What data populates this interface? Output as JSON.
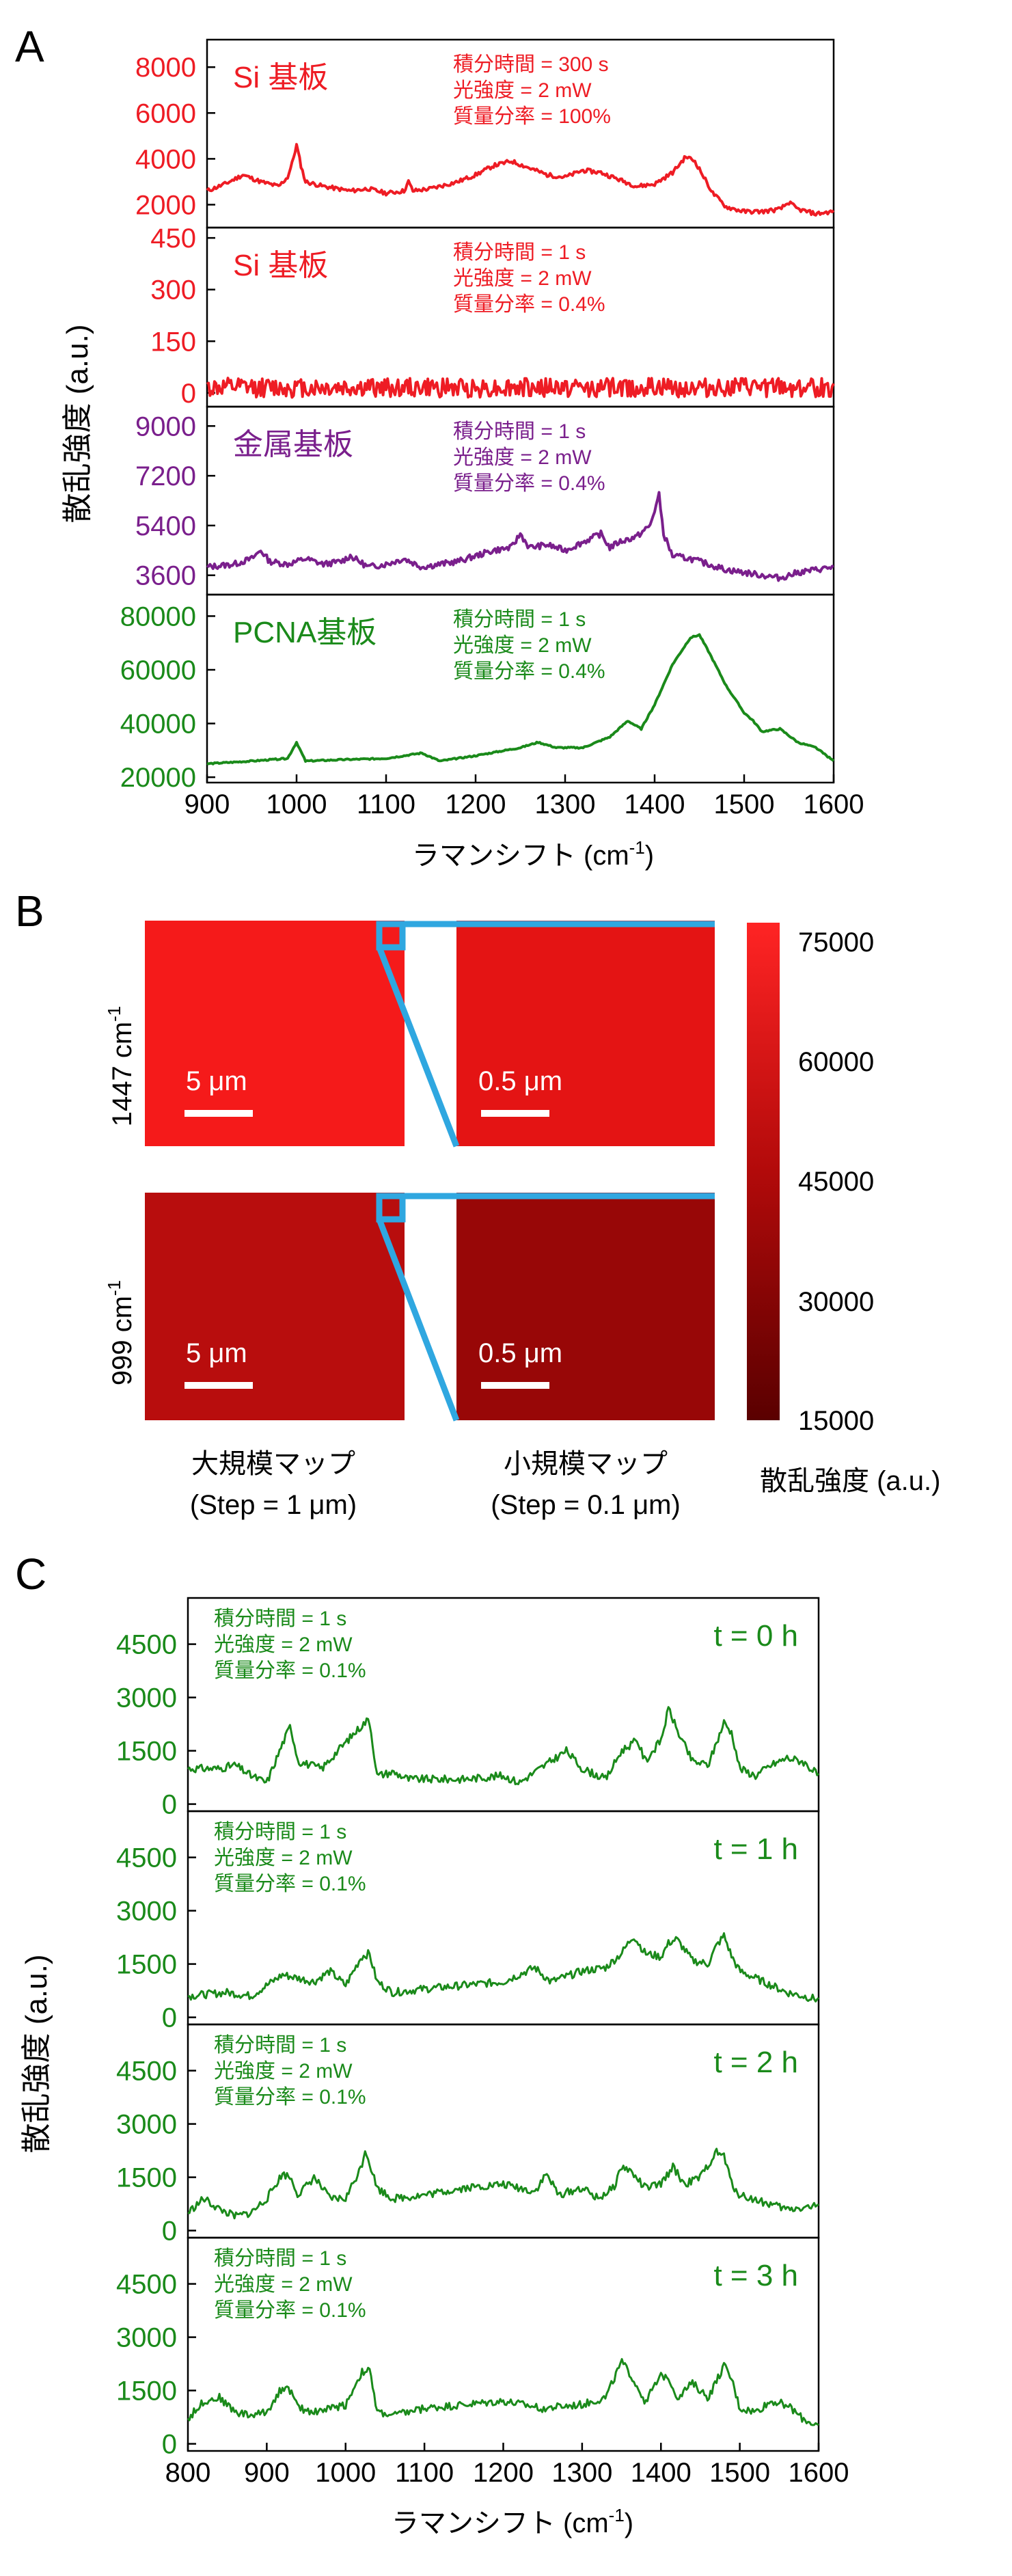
{
  "panel_labels": {
    "a": "A",
    "b": "B",
    "c": "C"
  },
  "colors": {
    "red": "#ee1c24",
    "purple": "#7a1f8c",
    "green": "#1a8a1a",
    "blue": "#2fa7e0"
  },
  "panelA": {
    "ylabel": "散乱強度 (a.u.)",
    "xlabel": "ラマンシフト (cm-1)",
    "xlabel_main": "ラマンシフト (cm",
    "xlabel_sup": "-1",
    "xlabel_end": ")",
    "xticks": [
      "900",
      "1000",
      "1100",
      "1200",
      "1300",
      "1400",
      "1500",
      "1600"
    ]
  },
  "panelB": {
    "row1_label": "1447 cm-1",
    "row1_main": "1447 cm",
    "row2_label": "999 cm-1",
    "row2_main": "999 cm",
    "sup": "-1",
    "scale_large": "5 μm",
    "scale_small": "0.5 μm",
    "cap_large_1": "大規模マップ",
    "cap_large_2": "(Step = 1 μm)",
    "cap_small_1": "小規模マップ",
    "cap_small_2": "(Step = 0.1 μm)",
    "colorbar_ticks": [
      "75000",
      "60000",
      "45000",
      "30000",
      "15000"
    ],
    "colorbar_label": "散乱強度 (a.u.)"
  },
  "panelC": {
    "ylabel": "散乱強度 (a.u.)",
    "xlabel": "ラマンシフト (cm-1)",
    "xlabel_main": "ラマンシフト (cm",
    "xlabel_sup": "-1",
    "xlabel_end": ")",
    "xticks": [
      "800",
      "900",
      "1000",
      "1100",
      "1200",
      "1300",
      "1400",
      "1500",
      "1600"
    ]
  },
  "chart_data": [
    {
      "id": "A1",
      "type": "line",
      "color": "#ee1c24",
      "label": "Si 基板",
      "params": [
        "積分時間 = 300 s",
        "光強度 = 2 mW",
        "質量分率 = 100%"
      ],
      "xlim": [
        900,
        1600
      ],
      "ylim": [
        1000,
        9200
      ],
      "yticks": [
        2000,
        4000,
        6000,
        8000
      ],
      "ytick_labels": [
        "2000",
        "4000",
        "6000",
        "8000"
      ],
      "x": [
        900,
        920,
        940,
        960,
        980,
        990,
        995,
        1000,
        1005,
        1010,
        1030,
        1060,
        1080,
        1100,
        1120,
        1125,
        1130,
        1150,
        1180,
        1200,
        1220,
        1240,
        1260,
        1280,
        1300,
        1320,
        1340,
        1360,
        1380,
        1400,
        1420,
        1435,
        1445,
        1455,
        1465,
        1480,
        1500,
        1520,
        1540,
        1550,
        1560,
        1580,
        1600
      ],
      "y": [
        2600,
        2900,
        3300,
        3000,
        2800,
        3200,
        3800,
        4600,
        3700,
        3000,
        2800,
        2600,
        2700,
        2500,
        2600,
        3000,
        2600,
        2700,
        3000,
        3300,
        3700,
        3900,
        3600,
        3300,
        3200,
        3500,
        3400,
        3100,
        2800,
        2900,
        3400,
        4100,
        3900,
        3200,
        2500,
        1900,
        1700,
        1700,
        1800,
        2100,
        1800,
        1600,
        1700
      ]
    },
    {
      "id": "A2",
      "type": "line",
      "color": "#ee1c24",
      "label": "Si 基板",
      "params": [
        "積分時間 = 1 s",
        "光強度 = 2 mW",
        "質量分率 = 0.4%"
      ],
      "xlim": [
        900,
        1600
      ],
      "ylim": [
        -40,
        480
      ],
      "yticks": [
        0,
        150,
        300,
        450
      ],
      "ytick_labels": [
        "0",
        "150",
        "300",
        "450"
      ],
      "x": [
        900,
        1600
      ],
      "y": [
        15,
        15
      ]
    },
    {
      "id": "A3",
      "type": "line",
      "color": "#7a1f8c",
      "label": "金属基板",
      "params": [
        "積分時間 = 1 s",
        "光強度 = 2 mW",
        "質量分率 = 0.4%"
      ],
      "xlim": [
        900,
        1600
      ],
      "ylim": [
        2900,
        9700
      ],
      "yticks": [
        3600,
        5400,
        7200,
        9000
      ],
      "ytick_labels": [
        "3600",
        "5400",
        "7200",
        "9000"
      ],
      "x": [
        900,
        930,
        950,
        960,
        970,
        990,
        1010,
        1030,
        1050,
        1060,
        1080,
        1100,
        1120,
        1140,
        1160,
        1180,
        1200,
        1220,
        1240,
        1250,
        1260,
        1280,
        1300,
        1320,
        1340,
        1350,
        1360,
        1380,
        1395,
        1405,
        1410,
        1420,
        1440,
        1460,
        1480,
        1500,
        1520,
        1540,
        1560,
        1580,
        1600
      ],
      "y": [
        3900,
        4000,
        4200,
        4500,
        4100,
        4000,
        4200,
        4000,
        4100,
        4300,
        3900,
        4000,
        4200,
        3900,
        4000,
        4100,
        4300,
        4500,
        4600,
        5100,
        4600,
        4700,
        4500,
        4800,
        5100,
        4600,
        4800,
        5000,
        5400,
        6500,
        5100,
        4300,
        4200,
        4000,
        3800,
        3700,
        3600,
        3500,
        3700,
        3800,
        3900
      ]
    },
    {
      "id": "A4",
      "type": "line",
      "color": "#1a8a1a",
      "label": "PCNA基板",
      "params": [
        "積分時間 = 1 s",
        "光強度 = 2 mW",
        "質量分率 = 0.4%"
      ],
      "xlim": [
        900,
        1600
      ],
      "ylim": [
        18000,
        88000
      ],
      "yticks": [
        20000,
        40000,
        60000,
        80000
      ],
      "ytick_labels": [
        "20000",
        "40000",
        "60000",
        "80000"
      ],
      "x": [
        900,
        950,
        990,
        1000,
        1010,
        1050,
        1100,
        1140,
        1160,
        1200,
        1250,
        1270,
        1290,
        1320,
        1350,
        1370,
        1385,
        1400,
        1420,
        1440,
        1450,
        1460,
        1480,
        1500,
        1510,
        1520,
        1540,
        1560,
        1580,
        1600
      ],
      "y": [
        25000,
        26000,
        27000,
        33000,
        26000,
        26500,
        27000,
        29000,
        26000,
        28000,
        31000,
        33000,
        31000,
        31000,
        35000,
        41000,
        38000,
        47000,
        62000,
        72000,
        73000,
        67000,
        54000,
        44000,
        41000,
        37000,
        38000,
        33000,
        31000,
        26000
      ]
    },
    {
      "id": "B",
      "type": "heatmap",
      "maps": [
        {
          "row": "1447 cm-1",
          "map": "大規模マップ",
          "value": 71000
        },
        {
          "row": "1447 cm-1",
          "map": "小規模マップ",
          "value": 64000
        },
        {
          "row": "999 cm-1",
          "map": "大規模マップ",
          "value": 44000
        },
        {
          "row": "999 cm-1",
          "map": "小規模マップ",
          "value": 36000
        }
      ],
      "colorbar_range": [
        15000,
        75000
      ]
    },
    {
      "id": "C1",
      "type": "line",
      "color": "#1a8a1a",
      "label": "t = 0 h",
      "params": [
        "積分時間 = 1 s",
        "光強度 = 2 mW",
        "質量分率 = 0.1%"
      ],
      "xlim": [
        800,
        1600
      ],
      "ylim": [
        -200,
        5800
      ],
      "yticks": [
        0,
        1500,
        3000,
        4500
      ],
      "ytick_labels": [
        "0",
        "1500",
        "3000",
        "4500"
      ],
      "x": [
        800,
        840,
        860,
        880,
        900,
        920,
        930,
        940,
        970,
        990,
        1020,
        1030,
        1040,
        1060,
        1080,
        1100,
        1150,
        1200,
        1220,
        1240,
        1260,
        1280,
        1300,
        1330,
        1350,
        1370,
        1380,
        1400,
        1410,
        1420,
        1440,
        1460,
        1480,
        1490,
        1500,
        1520,
        1540,
        1560,
        1580,
        1600
      ],
      "y": [
        1000,
        1000,
        1100,
        800,
        600,
        1700,
        2200,
        1200,
        1000,
        1500,
        2200,
        2400,
        800,
        900,
        700,
        700,
        700,
        800,
        600,
        900,
        1200,
        1500,
        1000,
        700,
        1500,
        1800,
        1200,
        1800,
        2700,
        2100,
        1200,
        1100,
        2300,
        2000,
        1000,
        800,
        1100,
        1300,
        1200,
        800
      ]
    },
    {
      "id": "C2",
      "type": "line",
      "color": "#1a8a1a",
      "label": "t = 1 h",
      "params": [
        "積分時間 = 1 s",
        "光強度 = 2 mW",
        "質量分率 = 0.1%"
      ],
      "xlim": [
        800,
        1600
      ],
      "ylim": [
        -200,
        5800
      ],
      "yticks": [
        0,
        1500,
        3000,
        4500
      ],
      "ytick_labels": [
        "0",
        "1500",
        "3000",
        "4500"
      ],
      "x": [
        800,
        850,
        880,
        900,
        920,
        940,
        960,
        980,
        1000,
        1020,
        1030,
        1040,
        1060,
        1100,
        1150,
        1200,
        1240,
        1260,
        1300,
        1330,
        1350,
        1365,
        1380,
        1400,
        1410,
        1420,
        1440,
        1460,
        1470,
        1480,
        1490,
        1500,
        1530,
        1560,
        1600
      ],
      "y": [
        600,
        700,
        600,
        900,
        1200,
        1100,
        1000,
        1300,
        900,
        1700,
        1800,
        1000,
        700,
        800,
        900,
        1000,
        1400,
        1000,
        1300,
        1400,
        1800,
        2300,
        1800,
        1700,
        2100,
        2200,
        1600,
        1500,
        2000,
        2300,
        1700,
        1300,
        1000,
        700,
        500
      ]
    },
    {
      "id": "C3",
      "type": "line",
      "color": "#1a8a1a",
      "label": "t = 2 h",
      "params": [
        "積分時間 = 1 s",
        "光強度 = 2 mW",
        "質量分率 = 0.1%"
      ],
      "xlim": [
        800,
        1600
      ],
      "ylim": [
        -200,
        5800
      ],
      "yticks": [
        0,
        1500,
        3000,
        4500
      ],
      "ytick_labels": [
        "0",
        "1500",
        "3000",
        "4500"
      ],
      "x": [
        800,
        820,
        840,
        860,
        880,
        900,
        920,
        930,
        940,
        960,
        980,
        1000,
        1020,
        1025,
        1040,
        1060,
        1100,
        1150,
        1200,
        1240,
        1255,
        1270,
        1300,
        1320,
        1340,
        1350,
        1360,
        1380,
        1400,
        1415,
        1430,
        1450,
        1470,
        1480,
        1490,
        1500,
        1530,
        1560,
        1600
      ],
      "y": [
        500,
        900,
        600,
        400,
        500,
        900,
        1600,
        1500,
        1000,
        1500,
        900,
        900,
        1800,
        2300,
        1200,
        900,
        1000,
        1200,
        1300,
        1100,
        1600,
        1000,
        1200,
        900,
        1200,
        1800,
        1700,
        1200,
        1300,
        1800,
        1300,
        1500,
        2200,
        2100,
        1300,
        1000,
        800,
        600,
        700
      ]
    },
    {
      "id": "C4",
      "type": "line",
      "color": "#1a8a1a",
      "label": "t = 3 h",
      "params": [
        "積分時間 = 1 s",
        "光強度 = 2 mW",
        "質量分率 = 0.1%"
      ],
      "xlim": [
        800,
        1600
      ],
      "ylim": [
        -200,
        5800
      ],
      "yticks": [
        0,
        1500,
        3000,
        4500
      ],
      "ytick_labels": [
        "0",
        "1500",
        "3000",
        "4500"
      ],
      "x": [
        800,
        820,
        840,
        860,
        880,
        900,
        920,
        930,
        940,
        960,
        980,
        1000,
        1020,
        1030,
        1040,
        1060,
        1100,
        1150,
        1200,
        1250,
        1300,
        1330,
        1350,
        1360,
        1380,
        1400,
        1410,
        1420,
        1440,
        1460,
        1480,
        1490,
        1500,
        1520,
        1540,
        1560,
        1580,
        1600
      ],
      "y": [
        700,
        1200,
        1300,
        900,
        800,
        900,
        1600,
        1500,
        1000,
        900,
        1000,
        1100,
        2000,
        2100,
        900,
        800,
        1000,
        1100,
        1200,
        1000,
        1100,
        1300,
        2300,
        2000,
        1200,
        1900,
        1900,
        1300,
        1700,
        1300,
        2200,
        1800,
        1000,
        900,
        1200,
        1100,
        700,
        500
      ]
    }
  ]
}
